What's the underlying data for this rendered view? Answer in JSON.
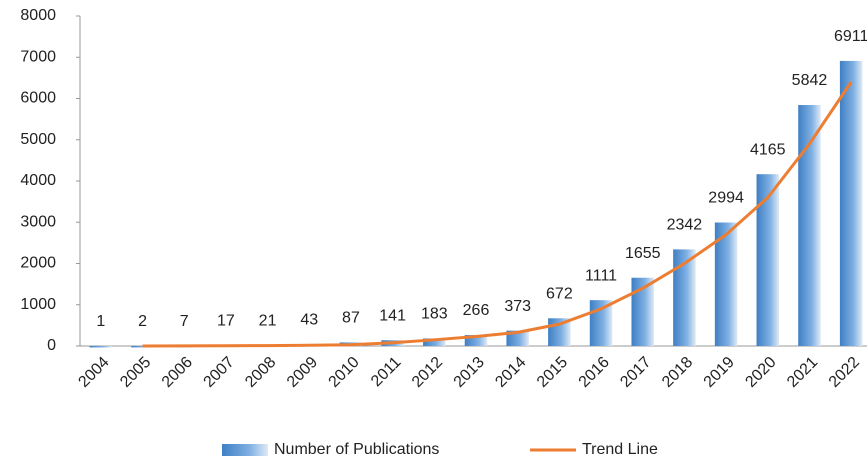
{
  "chart_data": {
    "type": "bar",
    "categories": [
      "2004",
      "2005",
      "2006",
      "2007",
      "2008",
      "2009",
      "2010",
      "2011",
      "2012",
      "2013",
      "2014",
      "2015",
      "2016",
      "2017",
      "2018",
      "2019",
      "2020",
      "2021",
      "2022"
    ],
    "series": [
      {
        "name": "Number of Publications",
        "type": "bar",
        "color": "#5b9bd5",
        "values": [
          1,
          2,
          7,
          17,
          21,
          43,
          87,
          141,
          183,
          266,
          373,
          672,
          1111,
          1655,
          2342,
          2994,
          4165,
          5842,
          6911
        ]
      },
      {
        "name": "Trend Line",
        "type": "line",
        "color": "#ed7d31",
        "values": [
          null,
          0,
          2,
          5,
          10,
          18,
          30,
          80,
          150,
          230,
          330,
          530,
          900,
          1400,
          2000,
          2700,
          3600,
          4900,
          6400
        ]
      }
    ],
    "ylim": [
      0,
      8000
    ],
    "yticks": [
      0,
      1000,
      2000,
      3000,
      4000,
      5000,
      6000,
      7000,
      8000
    ],
    "legend": "bottom"
  }
}
